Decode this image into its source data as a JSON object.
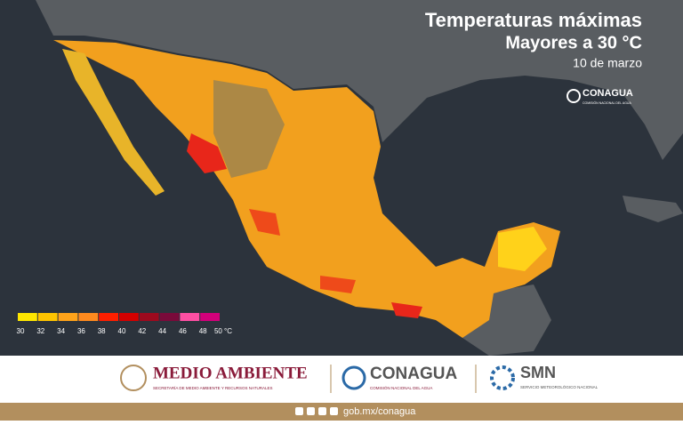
{
  "header": {
    "title": "Temperaturas máximas",
    "subtitle": "Mayores a 30 °C",
    "date": "10 de marzo"
  },
  "map_logo": {
    "name": "CONAGUA",
    "tagline": "COMISIÓN NACIONAL DEL AGUA"
  },
  "legend": {
    "ticks": [
      30,
      32,
      34,
      36,
      38,
      40,
      42,
      44,
      46,
      48,
      {
        "value": 50,
        "label": "50 °C"
      }
    ],
    "colors": [
      "#ffe600",
      "#ffc400",
      "#ffa31a",
      "#ff8a1e",
      "#ff1f00",
      "#d40000",
      "#9e0a1e",
      "#7a0a3a",
      "#ff4fa3",
      "#d2007a"
    ]
  },
  "footer": {
    "logos": [
      {
        "name": "MEDIO AMBIENTE",
        "tagline": "SECRETARÍA DE MEDIO AMBIENTE Y RECURSOS NATURALES"
      },
      {
        "name": "CONAGUA",
        "tagline": "COMISIÓN NACIONAL DEL AGUA"
      },
      {
        "name": "SMN",
        "tagline": "SERVICIO METEOROLÓGICO NACIONAL"
      }
    ],
    "url": "gob.mx/conagua"
  }
}
